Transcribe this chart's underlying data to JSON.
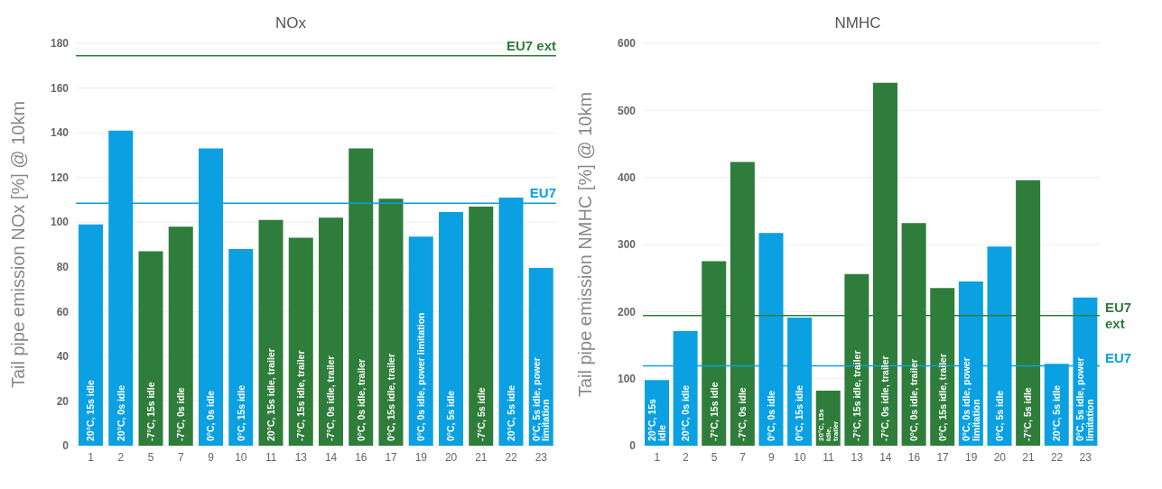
{
  "chart_data": [
    {
      "type": "bar",
      "title": "NOx",
      "ylabel": "Tail pipe emission NOx [%] @ 10km",
      "categories": [
        "1",
        "2",
        "5",
        "7",
        "9",
        "10",
        "11",
        "13",
        "14",
        "16",
        "17",
        "19",
        "20",
        "21",
        "22",
        "23"
      ],
      "values": [
        99,
        141,
        87,
        98,
        133,
        88,
        101,
        93,
        102,
        133,
        110.5,
        93.5,
        104.5,
        107,
        111,
        79.5
      ],
      "colors": [
        "#0aa0e2",
        "#0aa0e2",
        "#2e7d3a",
        "#2e7d3a",
        "#0aa0e2",
        "#0aa0e2",
        "#2e7d3a",
        "#2e7d3a",
        "#2e7d3a",
        "#2e7d3a",
        "#2e7d3a",
        "#0aa0e2",
        "#0aa0e2",
        "#2e7d3a",
        "#0aa0e2",
        "#0aa0e2"
      ],
      "ylim": [
        0,
        180
      ],
      "yticks": [
        0,
        20,
        40,
        60,
        80,
        100,
        120,
        140,
        160,
        180
      ],
      "grid": "y",
      "ref_lines": [
        {
          "axis": "y",
          "value": 174.5,
          "label": "EU7 ext",
          "color": "#2e7d3a"
        },
        {
          "axis": "y",
          "value": 108.5,
          "label": "EU7",
          "color": "#0aa0e2"
        }
      ],
      "annotations": [
        "20°C, 15s idle",
        "20°C, 0s idle",
        "-7°C, 15s idle",
        "-7°C, 0s idle",
        "0°C, 0s idle",
        "0°C, 15s idle",
        "20°C, 15s idle, trailer",
        "-7°C, 15s idle, trailer",
        "-7°C, 0s idle, trailer",
        "0°C, 0s idle, trailer",
        "0°C, 15s idle, trailer",
        "0°C, 0s idle, power limitation",
        "0°C, 5s idle",
        "-7°C, 5s idle",
        "20°C, 5s idle",
        "0°C, 5s idle, power limitation"
      ]
    },
    {
      "type": "bar",
      "title": "NMHC",
      "ylabel": "Tail pipe emission NMHC [%] @ 10km",
      "categories": [
        "1",
        "2",
        "5",
        "7",
        "9",
        "10",
        "11",
        "13",
        "14",
        "16",
        "17",
        "19",
        "20",
        "21",
        "22",
        "23"
      ],
      "values": [
        98,
        171,
        275,
        423,
        317,
        191,
        82,
        256,
        541,
        332,
        235,
        245,
        297,
        396,
        122,
        221
      ],
      "colors": [
        "#0aa0e2",
        "#0aa0e2",
        "#2e7d3a",
        "#2e7d3a",
        "#0aa0e2",
        "#0aa0e2",
        "#2e7d3a",
        "#2e7d3a",
        "#2e7d3a",
        "#2e7d3a",
        "#2e7d3a",
        "#0aa0e2",
        "#0aa0e2",
        "#2e7d3a",
        "#0aa0e2",
        "#0aa0e2"
      ],
      "ylim": [
        0,
        600
      ],
      "yticks": [
        0,
        100,
        200,
        300,
        400,
        500,
        600
      ],
      "grid": "y",
      "ref_lines": [
        {
          "axis": "y",
          "value": 194,
          "label": "EU7 ext",
          "color": "#2e7d3a"
        },
        {
          "axis": "y",
          "value": 119,
          "label": "EU7",
          "color": "#0aa0e2"
        }
      ],
      "annotations": [
        "20°C, 15s idle",
        "20°C, 0s idle",
        "-7°C, 15s idle",
        "-7°C, 0s idle",
        "0°C, 0s idle",
        "0°C, 15s idle",
        "20°C, 15s idle, trailer",
        "-7°C, 15s idle, trailer",
        "-7°C, 0s idle, trailer",
        "0°C, 0s idle, trailer",
        "0°C, 15s idle, trailer",
        "0°C, 0s idle, power limitation",
        "0°C, 5s idle",
        "-7°C, 5s idle",
        "20°C, 5s idle",
        "0°C, 5s idle, power limitation"
      ]
    }
  ]
}
